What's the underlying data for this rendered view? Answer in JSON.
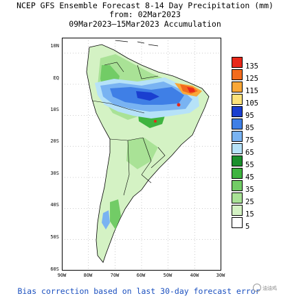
{
  "header": {
    "title_line1": "NCEP GFS Ensemble Forecast 8-14 Day Precipitation (mm)",
    "title_line2": "from: 02Mar2023",
    "title_line3": "09Mar2023–15Mar2023 Accumulation"
  },
  "map": {
    "lat_labels": [
      "10N",
      "EQ",
      "10S",
      "20S",
      "30S",
      "40S",
      "50S",
      "60S"
    ],
    "lon_labels": [
      "90W",
      "80W",
      "70W",
      "60W",
      "50W",
      "40W",
      "30W"
    ],
    "lat_values": [
      10,
      0,
      -10,
      -20,
      -30,
      -40,
      -50,
      -60
    ],
    "lon_values": [
      -90,
      -80,
      -70,
      -60,
      -50,
      -40,
      -30
    ],
    "extent": {
      "lon_min": -90,
      "lon_max": -30,
      "lat_min": -60,
      "lat_max": 15
    }
  },
  "colorbar": {
    "levels": [
      {
        "label": "135",
        "color": "#e8281a"
      },
      {
        "label": "125",
        "color": "#f26b1d"
      },
      {
        "label": "115",
        "color": "#f9a737"
      },
      {
        "label": "105",
        "color": "#fde27a"
      },
      {
        "label": "95",
        "color": "#1a3fd0"
      },
      {
        "label": "85",
        "color": "#3f7fe6"
      },
      {
        "label": "75",
        "color": "#79b3f2"
      },
      {
        "label": "65",
        "color": "#b6e2f8"
      },
      {
        "label": "55",
        "color": "#1b8f2c"
      },
      {
        "label": "45",
        "color": "#3fb440"
      },
      {
        "label": "35",
        "color": "#72cc66"
      },
      {
        "label": "25",
        "color": "#a9e296"
      },
      {
        "label": "15",
        "color": "#d4f2c4"
      },
      {
        "label": "5",
        "color": "#ffffff"
      }
    ]
  },
  "footer": {
    "note": "Bias correction based on last 30-day forecast error",
    "watermark": "油油鸡"
  }
}
